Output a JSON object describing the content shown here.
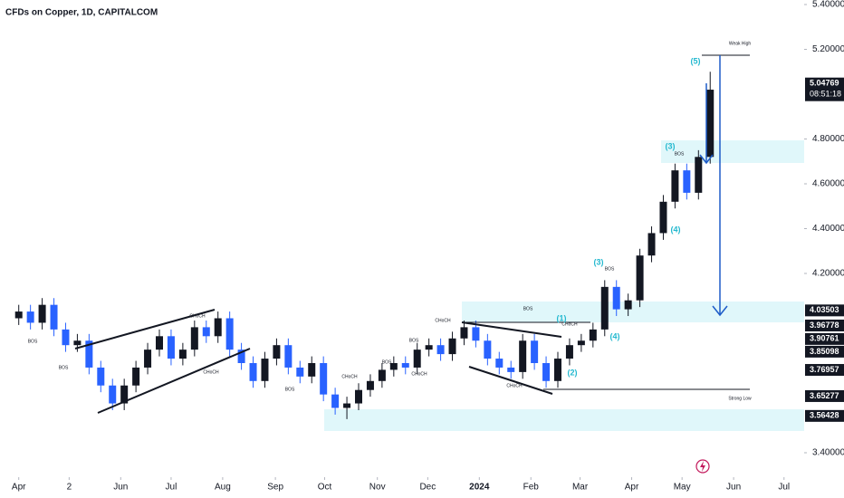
{
  "chart_data": {
    "type": "candlestick",
    "title": "CFDs on Copper, 1D, CAPITALCOM",
    "x": [
      0,
      1,
      2,
      3,
      4,
      5,
      6,
      7,
      8,
      9,
      10,
      11,
      12,
      13,
      14,
      15,
      16,
      17,
      18,
      19,
      20,
      21,
      22,
      23,
      24,
      25,
      26,
      27,
      28,
      29,
      30,
      31,
      32,
      33,
      34,
      35,
      36,
      37,
      38,
      39,
      40,
      41,
      42,
      43,
      44,
      45,
      46,
      47,
      48,
      49,
      50,
      51,
      52,
      53,
      54,
      55,
      56,
      57,
      58,
      59
    ],
    "open": [
      4.0,
      4.03,
      3.98,
      4.06,
      3.95,
      3.88,
      3.9,
      3.78,
      3.7,
      3.62,
      3.7,
      3.78,
      3.86,
      3.92,
      3.82,
      3.86,
      3.96,
      3.92,
      4.0,
      3.86,
      3.8,
      3.72,
      3.82,
      3.88,
      3.78,
      3.74,
      3.8,
      3.66,
      3.6,
      3.62,
      3.68,
      3.72,
      3.77,
      3.8,
      3.78,
      3.86,
      3.88,
      3.84,
      3.91,
      3.96,
      3.9,
      3.82,
      3.78,
      3.76,
      3.9,
      3.8,
      3.72,
      3.82,
      3.88,
      3.9,
      3.95,
      4.14,
      4.04,
      4.08,
      4.28,
      4.38,
      4.52,
      4.66,
      4.56,
      4.72
    ],
    "high": [
      4.06,
      4.06,
      4.09,
      4.09,
      3.98,
      3.93,
      3.93,
      3.81,
      3.73,
      3.73,
      3.81,
      3.89,
      3.95,
      3.95,
      3.89,
      3.99,
      3.99,
      4.03,
      4.03,
      3.89,
      3.83,
      3.85,
      3.91,
      3.91,
      3.81,
      3.83,
      3.83,
      3.69,
      3.65,
      3.71,
      3.75,
      3.8,
      3.83,
      3.83,
      3.89,
      3.91,
      3.91,
      3.94,
      3.99,
      3.99,
      3.93,
      3.85,
      3.81,
      3.93,
      3.93,
      3.83,
      3.85,
      3.91,
      3.93,
      3.98,
      4.17,
      4.17,
      4.11,
      4.31,
      4.41,
      4.55,
      4.69,
      4.69,
      4.75,
      5.1
    ],
    "low": [
      3.97,
      3.95,
      3.95,
      3.92,
      3.85,
      3.85,
      3.75,
      3.67,
      3.59,
      3.59,
      3.67,
      3.75,
      3.83,
      3.79,
      3.79,
      3.83,
      3.89,
      3.89,
      3.83,
      3.77,
      3.69,
      3.69,
      3.79,
      3.75,
      3.71,
      3.71,
      3.63,
      3.57,
      3.55,
      3.59,
      3.65,
      3.69,
      3.74,
      3.75,
      3.75,
      3.83,
      3.81,
      3.81,
      3.88,
      3.87,
      3.79,
      3.75,
      3.73,
      3.73,
      3.77,
      3.69,
      3.69,
      3.79,
      3.85,
      3.87,
      3.92,
      4.01,
      4.01,
      4.05,
      4.25,
      4.35,
      4.49,
      4.53,
      4.53,
      4.69
    ],
    "close": [
      4.03,
      3.98,
      4.06,
      3.95,
      3.88,
      3.9,
      3.78,
      3.7,
      3.62,
      3.7,
      3.78,
      3.86,
      3.92,
      3.82,
      3.86,
      3.96,
      3.92,
      4.0,
      3.86,
      3.8,
      3.72,
      3.82,
      3.88,
      3.78,
      3.74,
      3.8,
      3.66,
      3.6,
      3.62,
      3.68,
      3.72,
      3.77,
      3.8,
      3.78,
      3.86,
      3.88,
      3.84,
      3.91,
      3.96,
      3.9,
      3.82,
      3.78,
      3.76,
      3.9,
      3.8,
      3.72,
      3.82,
      3.88,
      3.9,
      3.95,
      4.14,
      4.04,
      4.08,
      4.28,
      4.38,
      4.52,
      4.66,
      4.56,
      4.72,
      5.02
    ],
    "up_color": "#131722",
    "down_color": "#2962ff",
    "xlim": [
      -1.6,
      66.4
    ],
    "xticks": [
      {
        "value": 0,
        "label": "Apr"
      },
      {
        "value": 4.3,
        "label": "2"
      },
      {
        "value": 8.7,
        "label": "Jun"
      },
      {
        "value": 13,
        "label": "Jul"
      },
      {
        "value": 17.4,
        "label": "Aug"
      },
      {
        "value": 21.9,
        "label": "Sep"
      },
      {
        "value": 26.1,
        "label": "Oct"
      },
      {
        "value": 30.6,
        "label": "Nov"
      },
      {
        "value": 34.9,
        "label": "Dec"
      },
      {
        "value": 39.3,
        "label": "2024"
      },
      {
        "value": 43.7,
        "label": "Feb"
      },
      {
        "value": 47.9,
        "label": "Mar"
      },
      {
        "value": 52.3,
        "label": "Apr"
      },
      {
        "value": 56.6,
        "label": "May"
      },
      {
        "value": 61,
        "label": "Jun"
      },
      {
        "value": 65.3,
        "label": "Jul"
      }
    ],
    "ylim": [
      3.4,
      5.4
    ],
    "yticks": [
      {
        "value": 5.4,
        "label": "5.40000"
      },
      {
        "value": 5.2,
        "label": "5.20000"
      },
      {
        "value": 4.8,
        "label": "4.80000"
      },
      {
        "value": 4.6,
        "label": "4.60000"
      },
      {
        "value": 4.4,
        "label": "4.40000"
      },
      {
        "value": 4.2,
        "label": "4.20000"
      },
      {
        "value": 3.4,
        "label": "3.40000"
      }
    ],
    "price_labels": [
      5.04769,
      4.03503,
      3.96778,
      3.90761,
      3.85098,
      3.76957,
      3.65277,
      3.56428
    ],
    "countdown": "08:51:18",
    "annotations": [
      "Weak High",
      "Strong Low",
      "BOS",
      "BOS",
      "BOS",
      "BOS",
      "BOS",
      "BOS",
      "BOS",
      "BOS",
      "CHoCH",
      "CHoCH",
      "CHoCH",
      "CHoCH",
      "CHoCH",
      "CHoCH",
      "CHoCH"
    ],
    "waves": [
      "(5)",
      "(3)",
      "(4)",
      "(3)",
      "(1)",
      "(4)",
      "(2)"
    ]
  }
}
